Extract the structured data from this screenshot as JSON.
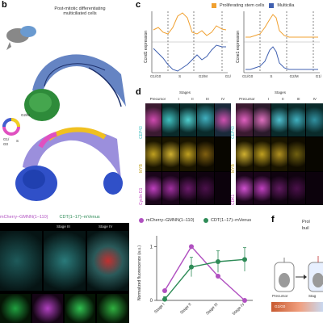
{
  "panels": {
    "b": {
      "label": "b",
      "title_line1": "Post-mitotic differentiating",
      "title_line2": "multiciliated cells",
      "wheel_g2m": "G2/M",
      "wheel_g1": "G1/",
      "wheel_g0": "G0",
      "wheel_s": "S"
    },
    "c": {
      "label": "c",
      "legend": [
        "Proliferating stem cells",
        "Multicilia"
      ],
      "ylabel_left": "Ccnd1 expression",
      "ylabel_right": "Ccne1 expression",
      "xticks": [
        "G1/G0",
        "S",
        "G2/M",
        "G1/"
      ]
    },
    "d": {
      "label": "d",
      "stages_title": "Stages",
      "col_headers": [
        "Precursor",
        "I",
        "II",
        "III",
        "IV"
      ],
      "left_rows": [
        "CEP43",
        "MYB",
        "Cyclin D1"
      ],
      "right_rows": [
        "CEP43",
        "MYB",
        "CDK1"
      ]
    },
    "e": {
      "legend": [
        "mCherry–GMNN(1–110)",
        "CDT(1–17)–mVenus"
      ],
      "stage_iii": "Stage III",
      "stage_iv": "Stage IV"
    },
    "e_plot": {
      "legend": [
        "mCherry–GMNN(1–110)",
        "CDT(1–17)–mVenus"
      ],
      "ylabel": "Normalized fluorescence (a.u.)",
      "yticks": [
        "0",
        "1"
      ],
      "xticks": [
        "Stage I",
        "Stage II",
        "Stage III",
        "Stage IV"
      ]
    },
    "f": {
      "label": "f",
      "text1": "Prol",
      "text2": "buil",
      "cell1": "Precursor",
      "cell2": "Stag",
      "bar": "G1/G0"
    }
  },
  "chart_data": {
    "type": "line",
    "categories": [
      "Stage I",
      "Stage II",
      "Stage III",
      "Stage IV"
    ],
    "series": [
      {
        "name": "mCherry–GMNN(1–110)",
        "color": "#b050c0",
        "values": [
          0.18,
          1.0,
          0.45,
          0.0
        ]
      },
      {
        "name": "CDT(1–17)–mVenus",
        "color": "#2e8b57",
        "values": [
          0.02,
          0.62,
          0.72,
          0.76
        ],
        "errors": [
          0.05,
          0.18,
          0.2,
          0.22
        ]
      }
    ],
    "ylabel": "Normalized fluorescence (a.u.)",
    "ylim": [
      0,
      1.2
    ]
  },
  "colors": {
    "orange": "#f0a030",
    "blue": "#4060b0",
    "purple": "#b050c0",
    "green": "#2e8b57"
  }
}
